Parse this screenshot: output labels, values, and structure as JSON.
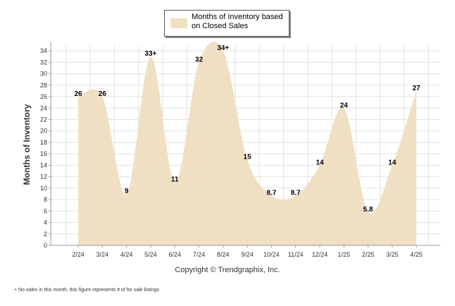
{
  "chart_data": {
    "type": "area",
    "title": "",
    "ylabel": "Months of Inventory",
    "xlabel": "",
    "ylim": [
      0,
      35
    ],
    "yticks": [
      0,
      2,
      4,
      6,
      8,
      10,
      12,
      14,
      16,
      18,
      20,
      22,
      24,
      26,
      28,
      30,
      32,
      34
    ],
    "categories": [
      "2/24",
      "3/24",
      "4/24",
      "5/24",
      "6/24",
      "7/24",
      "8/24",
      "9/24",
      "10/24",
      "11/24",
      "12/24",
      "1/25",
      "2/25",
      "3/25",
      "4/25"
    ],
    "series": [
      {
        "name": "Months of Inventory based on Closed Sales",
        "values": [
          26,
          26,
          9,
          33,
          11,
          32,
          34,
          15,
          8.7,
          8.7,
          14,
          24,
          5.8,
          14,
          27
        ],
        "labels": [
          "26",
          "26",
          "9",
          "33+",
          "11",
          "32",
          "34+",
          "15",
          "8.7",
          "8.7",
          "14",
          "24",
          "5.8",
          "14",
          "27"
        ]
      }
    ],
    "grid": true,
    "legend": "top-center",
    "fill_color": "#efe0c3"
  },
  "copyright": "Copyright © Trendgraphix, Inc.",
  "footnote": "+  No sales in this month, this figure represents # of for sale listings"
}
